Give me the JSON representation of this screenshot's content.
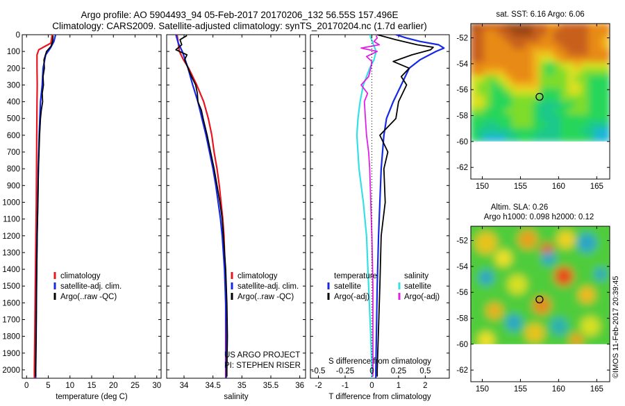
{
  "header": {
    "line1": "Argo profile: AO 5904493_94 05-Feb-2017 20170206_132 56.55S 157.496E",
    "line2": "Climatology: CARS2009. Satellite-adjusted climatology: synTS_20170204.nc (1.7d earlier)"
  },
  "colors": {
    "climatology": "#e8141e",
    "satellite": "#1428e6",
    "argo": "#000000",
    "satellite_s": "#33e0e6",
    "argo_s": "#e01ee6"
  },
  "chart_data": [
    {
      "type": "line",
      "panel": "temperature",
      "xlabel": "temperature (deg C)",
      "ylabel": "",
      "xlim": [
        -1,
        31
      ],
      "ylim": [
        2050,
        0
      ],
      "xticks": [
        0,
        5,
        10,
        15,
        20,
        25,
        30
      ],
      "yticks": [
        0,
        100,
        200,
        300,
        400,
        500,
        600,
        700,
        800,
        900,
        1000,
        1100,
        1200,
        1300,
        1400,
        1500,
        1600,
        1700,
        1800,
        1900,
        2000
      ],
      "legend": [
        "climatology",
        "satellite-adj. clim.",
        "Argo(..raw -QC)"
      ],
      "series": [
        {
          "name": "climatology",
          "color_key": "climatology",
          "depth": [
            0,
            50,
            70,
            90,
            120,
            150,
            200,
            300,
            400,
            600,
            800,
            1000,
            1200,
            1500,
            1800,
            2000,
            2050
          ],
          "values": [
            5.9,
            5.6,
            4.2,
            2.8,
            2.4,
            2.4,
            2.4,
            2.45,
            2.4,
            2.35,
            2.3,
            2.25,
            2.15,
            2.0,
            1.9,
            1.8,
            1.8
          ]
        },
        {
          "name": "satellite-adj. clim.",
          "color_key": "satellite",
          "depth": [
            0,
            40,
            80,
            120,
            200,
            300,
            400,
            600,
            800,
            1000,
            1200,
            1500,
            1800,
            2000,
            2050
          ],
          "values": [
            6.7,
            6.3,
            5.5,
            4.4,
            3.8,
            3.6,
            3.2,
            2.9,
            2.7,
            2.6,
            2.4,
            2.3,
            2.2,
            2.1,
            2.1
          ]
        },
        {
          "name": "Argo(..raw -QC)",
          "color_key": "argo",
          "depth": [
            5,
            40,
            70,
            100,
            150,
            200,
            250,
            300,
            350,
            400,
            450,
            500,
            600,
            800,
            1000,
            1200,
            1500,
            1800,
            2000,
            2040
          ],
          "values": [
            6.1,
            6.0,
            5.6,
            4.6,
            4.0,
            4.1,
            3.8,
            3.9,
            3.6,
            3.7,
            3.4,
            3.2,
            3.0,
            2.75,
            2.6,
            2.45,
            2.3,
            2.2,
            2.1,
            2.1
          ]
        }
      ]
    },
    {
      "type": "line",
      "panel": "salinity",
      "xlabel": "salinity",
      "ylabel": "",
      "xlim": [
        33.7,
        36.1
      ],
      "ylim": [
        2050,
        0
      ],
      "xticks": [
        34,
        34.5,
        35,
        35.5,
        36
      ],
      "legend": [
        "climatology",
        "satellite-adj. clim.",
        "Argo(..raw -QC)"
      ],
      "annotation": [
        "US ARGO PROJECT",
        "PI: STEPHEN RISER"
      ],
      "series": [
        {
          "name": "climatology",
          "color_key": "climatology",
          "depth": [
            0,
            50,
            100,
            150,
            200,
            300,
            400,
            500,
            600,
            700,
            800,
            900,
            1000,
            1100,
            1200,
            1400,
            1600,
            1800,
            2000,
            2050
          ],
          "values": [
            33.88,
            33.9,
            33.92,
            33.99,
            34.08,
            34.22,
            34.34,
            34.42,
            34.48,
            34.52,
            34.57,
            34.61,
            34.64,
            34.67,
            34.69,
            34.71,
            34.72,
            34.72,
            34.72,
            34.72
          ]
        },
        {
          "name": "satellite-adj. clim.",
          "color_key": "satellite",
          "depth": [
            0,
            50,
            100,
            150,
            200,
            300,
            400,
            500,
            600,
            700,
            800,
            900,
            1000,
            1100,
            1200,
            1400,
            1600,
            1800,
            2000,
            2050
          ],
          "values": [
            33.86,
            33.9,
            33.97,
            34.02,
            34.07,
            34.15,
            34.24,
            34.31,
            34.38,
            34.44,
            34.5,
            34.55,
            34.59,
            34.63,
            34.66,
            34.7,
            34.72,
            34.73,
            34.73,
            34.73
          ]
        },
        {
          "name": "Argo(..raw -QC)",
          "color_key": "argo",
          "depth": [
            5,
            30,
            60,
            90,
            120,
            150,
            200,
            250,
            300,
            350,
            400,
            450,
            500,
            600,
            700,
            800,
            900,
            1000,
            1100,
            1200,
            1400,
            1600,
            1800,
            2000,
            2040
          ],
          "values": [
            34.05,
            33.93,
            33.96,
            33.86,
            34.05,
            34.01,
            34.07,
            34.13,
            34.2,
            34.23,
            34.24,
            34.3,
            34.33,
            34.4,
            34.46,
            34.52,
            34.57,
            34.62,
            34.66,
            34.68,
            34.72,
            34.74,
            34.75,
            34.74,
            34.74
          ]
        }
      ]
    },
    {
      "type": "line",
      "panel": "difference",
      "xlabel": "T difference from climatology",
      "xlabel_top": "S difference from climatology",
      "xlim": [
        -2.3,
        2.9
      ],
      "ylim": [
        2050,
        0
      ],
      "xticks": [
        -2,
        -1,
        0,
        1,
        2
      ],
      "xticks_s": [
        -0.5,
        -0.25,
        0,
        0.25,
        0.5
      ],
      "legend_temperature": [
        "temperature",
        "satellite",
        "Argo(-adj)"
      ],
      "legend_salinity": [
        "salinity",
        "satellite",
        "Argo(-adj)"
      ],
      "series": [
        {
          "name": "satellite",
          "color_key": "satellite",
          "unit": "T",
          "depth": [
            0,
            20,
            40,
            60,
            80,
            100,
            150,
            200,
            300,
            400,
            500,
            600,
            800,
            1000,
            1200,
            1500,
            2000,
            2050
          ],
          "values": [
            0.9,
            1.3,
            1.8,
            2.5,
            2.7,
            2.4,
            1.8,
            1.4,
            1.1,
            0.8,
            0.55,
            0.45,
            0.35,
            0.3,
            0.25,
            0.2,
            0.15,
            0.15
          ]
        },
        {
          "name": "Argo(-adj)",
          "color_key": "argo",
          "unit": "T",
          "depth": [
            0,
            30,
            60,
            75,
            90,
            120,
            160,
            200,
            250,
            300,
            400,
            500,
            600,
            700,
            800,
            1000,
            1200,
            1500,
            2000,
            2040
          ],
          "values": [
            0.2,
            0.9,
            1.7,
            2.3,
            2.2,
            1.5,
            0.8,
            1.4,
            1.1,
            1.3,
            1.0,
            0.9,
            0.3,
            0.6,
            0.45,
            0.5,
            0.35,
            0.3,
            0.2,
            0.2
          ]
        },
        {
          "name": "satellite",
          "color_key": "satellite_s",
          "unit": "S",
          "depth": [
            0,
            50,
            100,
            150,
            200,
            300,
            400,
            500,
            600,
            800,
            1000,
            1200,
            1500,
            1800,
            2000,
            2050
          ],
          "values": [
            -0.02,
            0.01,
            0.04,
            0.02,
            -0.02,
            -0.08,
            -0.11,
            -0.13,
            -0.14,
            -0.12,
            -0.08,
            -0.05,
            -0.03,
            -0.01,
            0.0,
            0.0
          ]
        },
        {
          "name": "Argo(-adj)",
          "color_key": "argo_s",
          "unit": "S",
          "depth": [
            5,
            20,
            40,
            60,
            80,
            100,
            130,
            160,
            200,
            250,
            300,
            350,
            400,
            500,
            600,
            700,
            800,
            1000,
            1200,
            1500,
            2000,
            2040
          ],
          "values": [
            0.04,
            0.05,
            0.02,
            0.07,
            -0.1,
            0.05,
            -0.05,
            0.0,
            -0.01,
            -0.03,
            -0.1,
            -0.04,
            -0.07,
            -0.06,
            -0.05,
            -0.03,
            -0.02,
            -0.01,
            0.0,
            0.01,
            0.01,
            0.01
          ]
        }
      ]
    },
    {
      "type": "heatmap",
      "panel": "sst-map",
      "title": "sat. SST: 6.16 Argo: 6.06",
      "xlim": [
        148.5,
        166.7
      ],
      "ylim": [
        -62.9,
        -50.9
      ],
      "xticks": [
        150,
        155,
        160,
        165
      ],
      "yticks": [
        -52,
        -54,
        -56,
        -58,
        -60,
        -62
      ],
      "marker": {
        "lon": 157.5,
        "lat": -56.55
      },
      "data_south_limit": -60
    },
    {
      "type": "heatmap",
      "panel": "sla-map",
      "title": [
        "Altim. SLA: 0.26",
        "Argo h1000: 0.098 h2000: 0.12"
      ],
      "xlim": [
        148.5,
        166.7
      ],
      "ylim": [
        -62.9,
        -50.9
      ],
      "xticks": [
        150,
        155,
        160,
        165
      ],
      "yticks": [
        -52,
        -54,
        -56,
        -58,
        -60,
        -62
      ],
      "marker": {
        "lon": 157.5,
        "lat": -56.55
      },
      "data_south_limit": -60
    }
  ],
  "credit": "©IMOS 11-Feb-2017 20:39:45"
}
